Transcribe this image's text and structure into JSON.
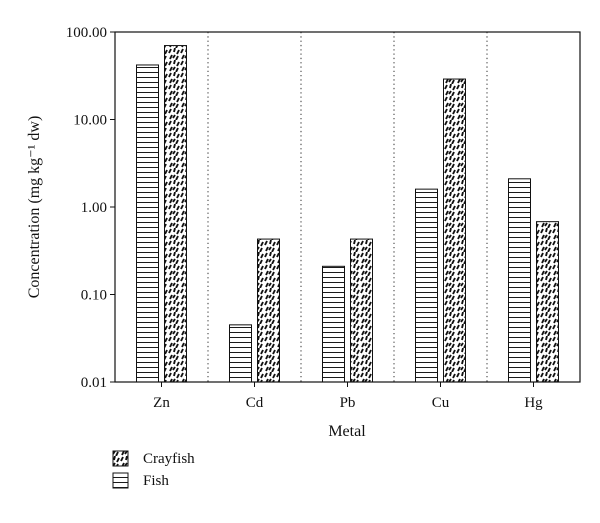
{
  "chart_data": {
    "type": "bar",
    "y_scale": "log",
    "ylim": [
      0.01,
      100
    ],
    "yticks": [
      "0.01",
      "0.10",
      "1.00",
      "10.00",
      "100.00"
    ],
    "xlabel": "Metal",
    "ylabel": "Concentration (mg kg⁻¹ dw)",
    "categories": [
      "Zn",
      "Cd",
      "Pb",
      "Cu",
      "Hg"
    ],
    "series": [
      {
        "name": "Fish",
        "pattern": "horizontal-lines",
        "values": [
          42,
          0.045,
          0.21,
          1.6,
          2.1
        ]
      },
      {
        "name": "Crayfish",
        "pattern": "dashes",
        "values": [
          70,
          0.43,
          0.43,
          29,
          0.68
        ]
      }
    ],
    "category_separators": "dotted",
    "legend_position": "bottom-left",
    "legend_order": [
      "Crayfish",
      "Fish"
    ],
    "grid": false
  }
}
